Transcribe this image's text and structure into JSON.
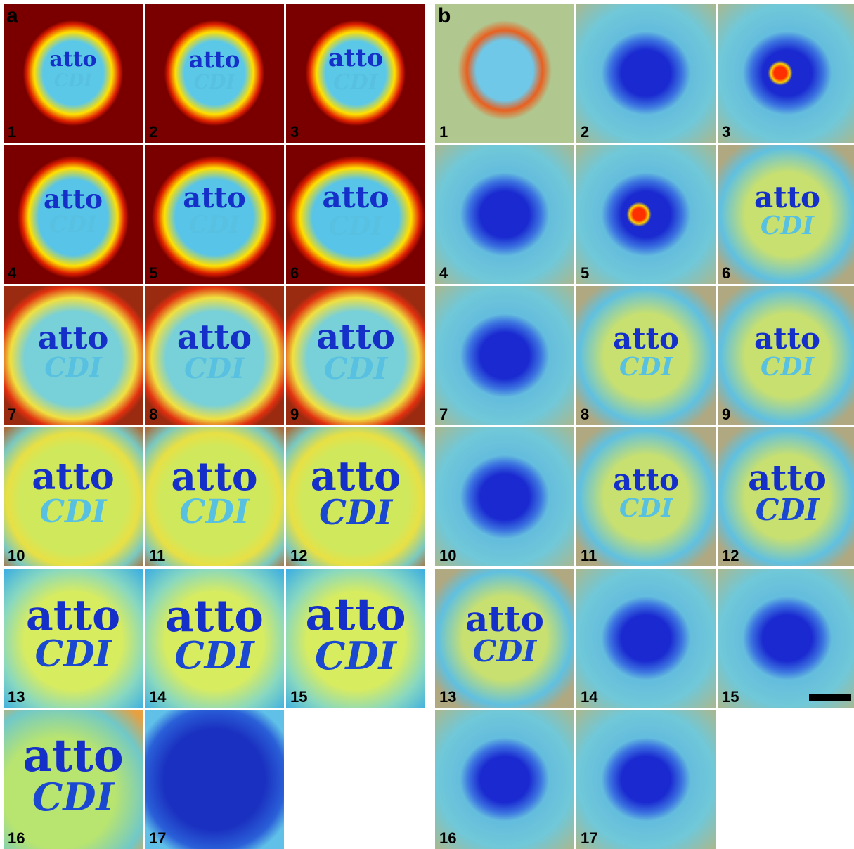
{
  "panels": [
    {
      "label": "a",
      "tiles": [
        "1",
        "2",
        "3",
        "4",
        "5",
        "6",
        "7",
        "8",
        "9",
        "10",
        "11",
        "12",
        "13",
        "14",
        "15",
        "16",
        "17"
      ]
    },
    {
      "label": "b",
      "tiles": [
        "1",
        "2",
        "3",
        "4",
        "5",
        "6",
        "7",
        "8",
        "9",
        "10",
        "11",
        "12",
        "13",
        "14",
        "15",
        "16",
        "17"
      ]
    }
  ],
  "image_text": {
    "line1": "atto",
    "line2": "CDI"
  }
}
